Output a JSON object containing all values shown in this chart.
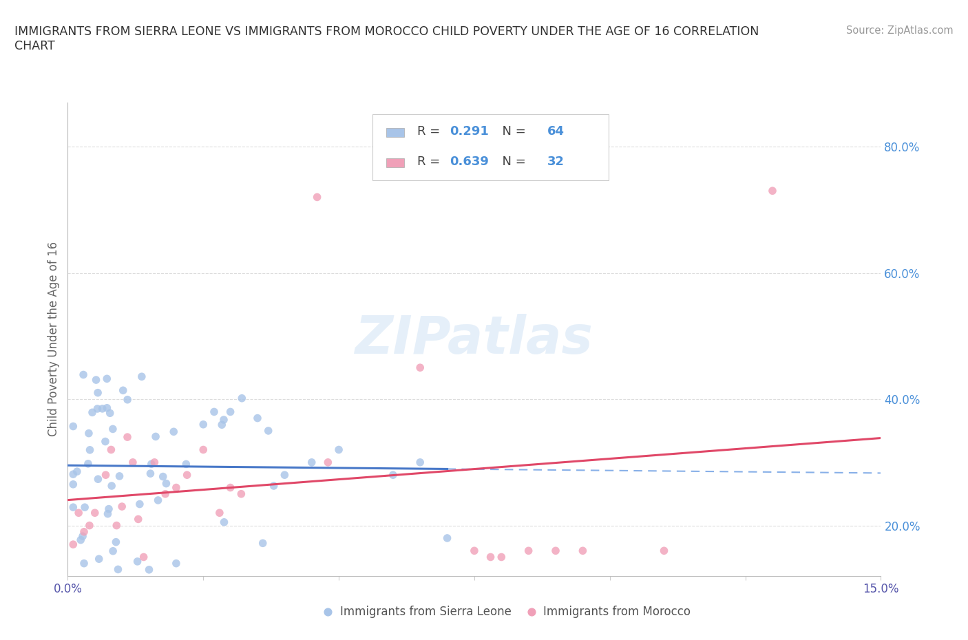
{
  "title": "IMMIGRANTS FROM SIERRA LEONE VS IMMIGRANTS FROM MOROCCO CHILD POVERTY UNDER THE AGE OF 16 CORRELATION\nCHART",
  "source_text": "Source: ZipAtlas.com",
  "ylabel": "Child Poverty Under the Age of 16",
  "xlim": [
    0.0,
    0.15
  ],
  "ylim": [
    0.12,
    0.87
  ],
  "xtick_positions": [
    0.0,
    0.025,
    0.05,
    0.075,
    0.1,
    0.125,
    0.15
  ],
  "xtick_labels": [
    "0.0%",
    "",
    "",
    "",
    "",
    "",
    "15.0%"
  ],
  "ytick_positions": [
    0.2,
    0.4,
    0.6,
    0.8
  ],
  "ytick_labels": [
    "20.0%",
    "40.0%",
    "60.0%",
    "80.0%"
  ],
  "sierra_leone_color": "#a8c4e8",
  "morocco_color": "#f0a0b8",
  "sierra_leone_line_color": "#4878c8",
  "morocco_line_color": "#e04868",
  "dashed_line_color": "#88b0e8",
  "legend_R1": "0.291",
  "legend_N1": "64",
  "legend_R2": "0.639",
  "legend_N2": "32",
  "legend_value_color": "#4a90d9",
  "watermark": "ZIPatlas",
  "background_color": "#ffffff",
  "title_color": "#333333",
  "source_color": "#999999",
  "ylabel_color": "#666666",
  "xtick_color": "#5555aa",
  "ytick_color": "#4a90d9",
  "grid_color": "#dddddd",
  "legend_text_color": "#444444"
}
